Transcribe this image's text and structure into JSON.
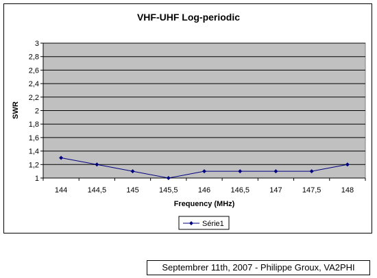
{
  "chart_data": {
    "type": "line",
    "title": "VHF-UHF Log-periodic",
    "xlabel": "Frequency (MHz)",
    "ylabel": "SWR",
    "categories": [
      "144",
      "144,5",
      "145",
      "145,5",
      "146",
      "146,5",
      "147",
      "147,5",
      "148"
    ],
    "series": [
      {
        "name": "Série1",
        "values": [
          1.3,
          1.2,
          1.1,
          1.0,
          1.1,
          1.1,
          1.1,
          1.1,
          1.2
        ]
      }
    ],
    "y_ticks": [
      "1",
      "1,2",
      "1,4",
      "1,6",
      "1,8",
      "2",
      "2,2",
      "2,4",
      "2,6",
      "2,8",
      "3"
    ],
    "ylim": [
      1,
      3
    ],
    "grid": true,
    "legend": "bottom",
    "colors": {
      "series": "#000080",
      "plot_background": "#c0c0c0",
      "gridline": "#000000"
    }
  },
  "caption": "Septembrer 11th, 2007 - Philippe Groux, VA2PHI"
}
